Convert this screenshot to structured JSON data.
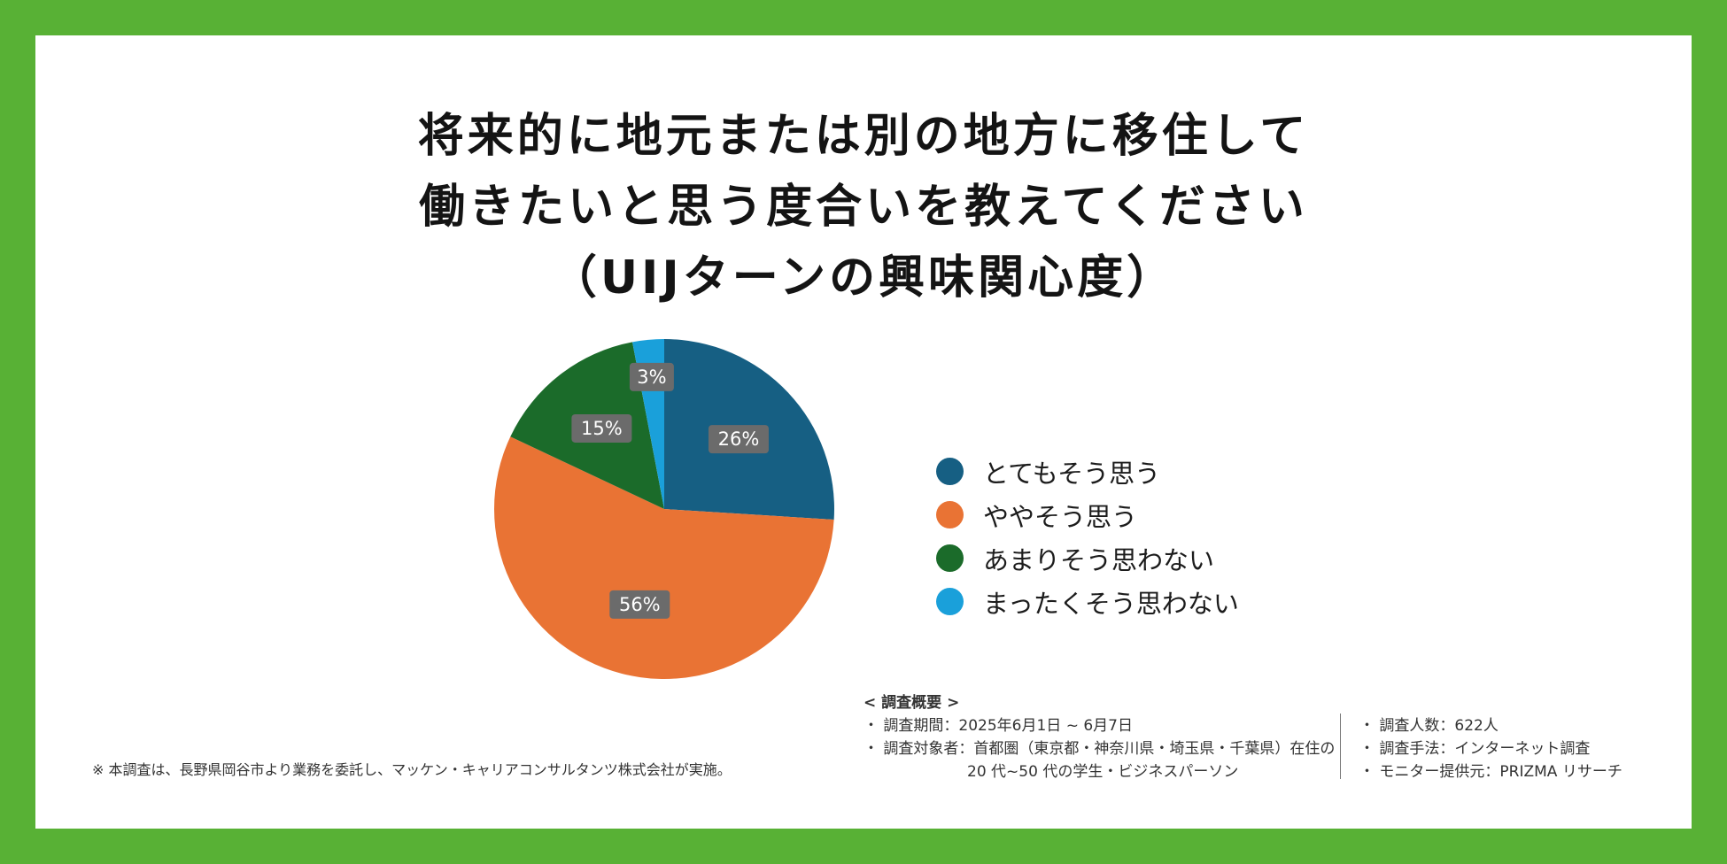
{
  "title": {
    "line1": "将来的に地元または別の地方に移住して",
    "line2": "働きたいと思う度合いを教えてください",
    "line3": "（UIJターンの興味関心度）"
  },
  "chart_data": {
    "type": "pie",
    "title": "将来的に地元または別の地方に移住して働きたいと思う度合いを教えてください（UIJターンの興味関心度）",
    "start_angle_deg": 0,
    "direction": "clockwise",
    "slices": [
      {
        "label": "とてもそう思う",
        "value": 26,
        "display": "26%",
        "color": "#165f83"
      },
      {
        "label": "ややそう思う",
        "value": 56,
        "display": "56%",
        "color": "#e97334"
      },
      {
        "label": "あまりそう思わない",
        "value": 15,
        "display": "15%",
        "color": "#1b6b2a"
      },
      {
        "label": "まったくそう思わない",
        "value": 3,
        "display": "3%",
        "color": "#1aa0da"
      }
    ],
    "legend_position": "right"
  },
  "footnote": "※ 本調査は、長野県岡谷市より業務を委託し、マッケン・キャリアコンサルタンツ株式会社が実施。",
  "survey": {
    "heading": "< 調査概要 >",
    "period": "・ 調査期間：2025年6月1日 ~ 6月7日",
    "target_line1": "・ 調査対象者：首都圏（東京都・神奈川県・埼玉県・千葉県）在住の",
    "target_line2": "20 代~50 代の学生・ビジネスパーソン",
    "respondents": "・ 調査人数：622人",
    "method": "・ 調査手法：インターネット調査",
    "provider": "・ モニター提供元：PRIZMA リサーチ"
  }
}
